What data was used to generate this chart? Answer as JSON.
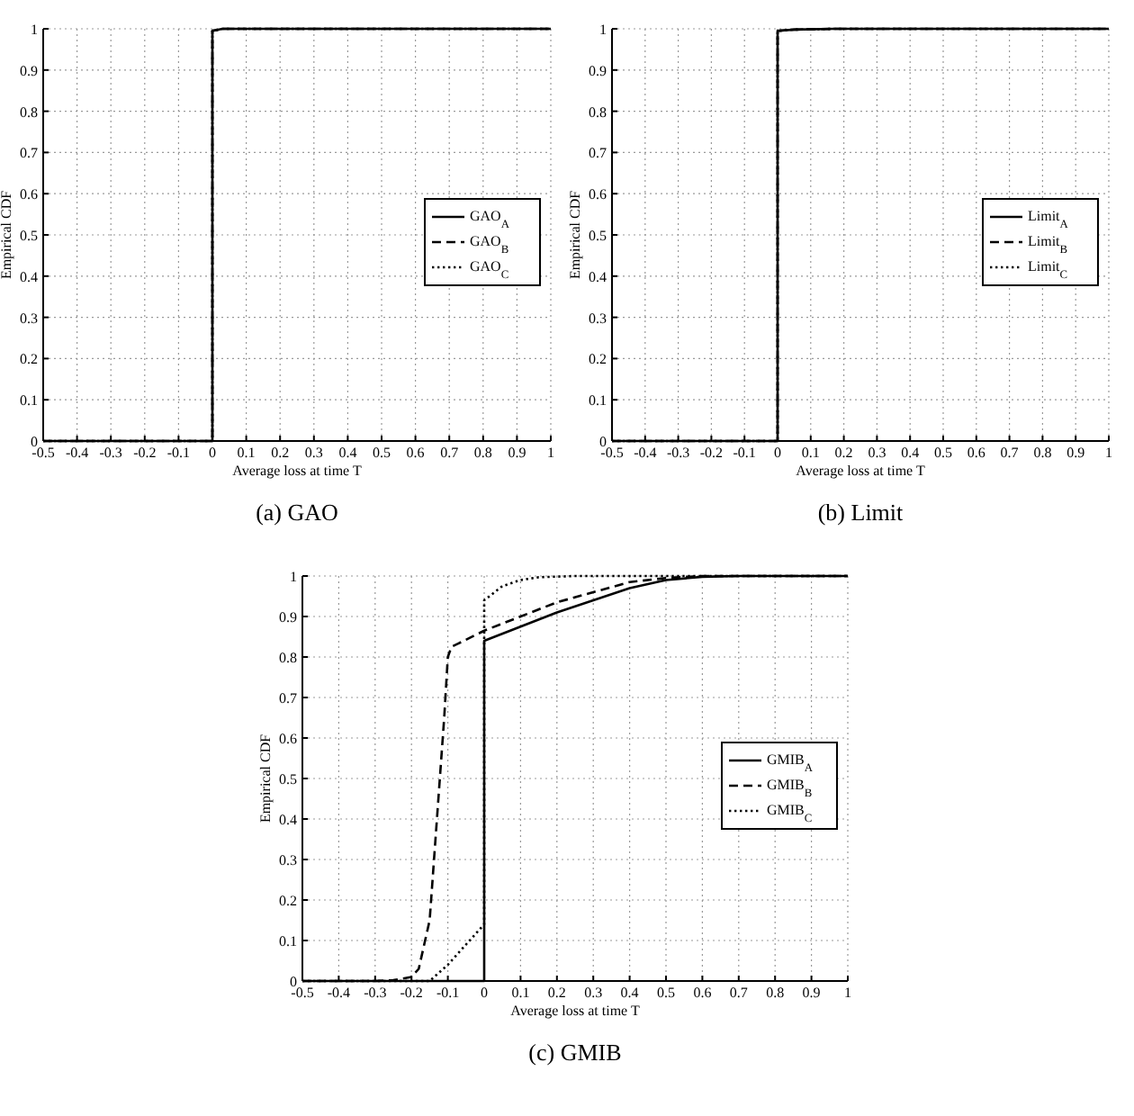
{
  "chart_data": [
    {
      "type": "line",
      "title": "(a) GAO",
      "xlabel": "Average loss at time T",
      "ylabel": "Empirical CDF",
      "xlim": [
        -0.5,
        1
      ],
      "ylim": [
        0,
        1
      ],
      "xticks": [
        -0.5,
        -0.4,
        -0.3,
        -0.2,
        -0.1,
        0,
        0.1,
        0.2,
        0.3,
        0.4,
        0.5,
        0.6,
        0.7,
        0.8,
        0.9,
        1
      ],
      "yticks": [
        0,
        0.1,
        0.2,
        0.3,
        0.4,
        0.5,
        0.6,
        0.7,
        0.8,
        0.9,
        1
      ],
      "grid": true,
      "legend": "right",
      "series": [
        {
          "name": "GAO$_{A}$",
          "color": "#000000",
          "line_style": "solid",
          "x": [
            -0.5,
            0,
            0,
            0.03,
            1
          ],
          "values": [
            0,
            0,
            0.995,
            1,
            1
          ]
        },
        {
          "name": "GAO$_{B}$",
          "color": "#000000",
          "line_style": "dashed",
          "x": [
            -0.5,
            0,
            0,
            0.03,
            1
          ],
          "values": [
            0,
            0,
            0.995,
            1,
            1
          ]
        },
        {
          "name": "GAO$_{C}$",
          "color": "#000000",
          "line_style": "dotted",
          "x": [
            -0.5,
            0,
            0,
            0.03,
            1
          ],
          "values": [
            0,
            0,
            0.995,
            1,
            1
          ]
        }
      ]
    },
    {
      "type": "line",
      "title": "(b) Limit",
      "xlabel": "Average loss at time T",
      "ylabel": "Empirical CDF",
      "xlim": [
        -0.5,
        1
      ],
      "ylim": [
        0,
        1
      ],
      "xticks": [
        -0.5,
        -0.4,
        -0.3,
        -0.2,
        -0.1,
        0,
        0.1,
        0.2,
        0.3,
        0.4,
        0.5,
        0.6,
        0.7,
        0.8,
        0.9,
        1
      ],
      "yticks": [
        0,
        0.1,
        0.2,
        0.3,
        0.4,
        0.5,
        0.6,
        0.7,
        0.8,
        0.9,
        1
      ],
      "grid": true,
      "legend": "right",
      "series": [
        {
          "name": "Limit$_{A}$",
          "color": "#000000",
          "line_style": "solid",
          "x": [
            -0.5,
            0,
            0,
            0.05,
            0.17,
            1
          ],
          "values": [
            0,
            0,
            0.995,
            0.998,
            1,
            1
          ]
        },
        {
          "name": "Limit$_{B}$",
          "color": "#000000",
          "line_style": "dashed",
          "x": [
            -0.5,
            0,
            0,
            0.05,
            0.17,
            1
          ],
          "values": [
            0,
            0,
            0.995,
            0.998,
            1,
            1
          ]
        },
        {
          "name": "Limit$_{C}$",
          "color": "#000000",
          "line_style": "dotted",
          "x": [
            -0.5,
            0,
            0,
            0.05,
            0.17,
            1
          ],
          "values": [
            0,
            0,
            0.995,
            0.998,
            1,
            1
          ]
        }
      ]
    },
    {
      "type": "line",
      "title": "(c) GMIB",
      "xlabel": "Average loss at time T",
      "ylabel": "Empirical CDF",
      "xlim": [
        -0.5,
        1
      ],
      "ylim": [
        0,
        1
      ],
      "xticks": [
        -0.5,
        -0.4,
        -0.3,
        -0.2,
        -0.1,
        0,
        0.1,
        0.2,
        0.3,
        0.4,
        0.5,
        0.6,
        0.7,
        0.8,
        0.9,
        1
      ],
      "yticks": [
        0,
        0.1,
        0.2,
        0.3,
        0.4,
        0.5,
        0.6,
        0.7,
        0.8,
        0.9,
        1
      ],
      "grid": true,
      "legend": "right",
      "series": [
        {
          "name": "GMIB$_{A}$",
          "color": "#000000",
          "line_style": "solid",
          "x": [
            -0.5,
            0,
            0,
            0.1,
            0.2,
            0.3,
            0.4,
            0.5,
            0.6,
            0.7,
            1
          ],
          "values": [
            0,
            0,
            0.84,
            0.875,
            0.91,
            0.94,
            0.97,
            0.99,
            0.998,
            1,
            1
          ]
        },
        {
          "name": "GMIB$_{B}$",
          "color": "#000000",
          "line_style": "dashed",
          "x": [
            -0.5,
            -0.3,
            -0.25,
            -0.2,
            -0.18,
            -0.15,
            -0.13,
            -0.11,
            -0.1,
            -0.09,
            0,
            0.1,
            0.2,
            0.3,
            0.4,
            0.5,
            0.6,
            1
          ],
          "values": [
            0,
            0,
            0.002,
            0.01,
            0.03,
            0.15,
            0.4,
            0.65,
            0.8,
            0.825,
            0.865,
            0.9,
            0.935,
            0.96,
            0.985,
            0.995,
            1,
            1
          ]
        },
        {
          "name": "GMIB$_{C}$",
          "color": "#000000",
          "line_style": "dotted",
          "x": [
            -0.5,
            -0.15,
            -0.1,
            -0.05,
            0,
            0,
            0.05,
            0.1,
            0.15,
            0.25,
            1
          ],
          "values": [
            0,
            0,
            0.04,
            0.09,
            0.14,
            0.94,
            0.975,
            0.99,
            0.997,
            1,
            1
          ]
        }
      ]
    }
  ]
}
